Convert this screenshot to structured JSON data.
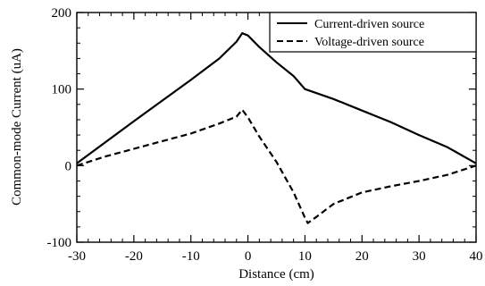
{
  "chart_data": {
    "type": "line",
    "xlabel": "Distance (cm)",
    "ylabel": "Common-mode Current (uA)",
    "xlim": [
      -30,
      40
    ],
    "ylim": [
      -100,
      200
    ],
    "x_ticks": [
      -30,
      -20,
      -10,
      0,
      10,
      20,
      30,
      40
    ],
    "y_ticks": [
      -100,
      0,
      100,
      200
    ],
    "x_tick_labels": [
      "-30",
      "-20",
      "-10",
      "0",
      "10",
      "20",
      "30",
      "40"
    ],
    "y_tick_labels": [
      "-100",
      "0",
      "100",
      "200"
    ],
    "grid": false,
    "legend_position": "top-right",
    "series": [
      {
        "name": "Current-driven source",
        "style": "solid",
        "x": [
          -30,
          -20,
          -10,
          -5,
          -2,
          -1,
          0,
          2,
          5,
          8,
          10,
          15,
          20,
          25,
          30,
          35,
          40
        ],
        "y": [
          3,
          58,
          112,
          140,
          162,
          173,
          170,
          155,
          135,
          117,
          100,
          87,
          72,
          57,
          40,
          24,
          3
        ]
      },
      {
        "name": "Voltage-driven source",
        "style": "dashed",
        "x": [
          -30,
          -25,
          -20,
          -15,
          -10,
          -5,
          -2,
          -1,
          0,
          2,
          5,
          8,
          10,
          10.5,
          12,
          15,
          20,
          25,
          30,
          35,
          40
        ],
        "y": [
          0,
          12,
          22,
          32,
          42,
          55,
          64,
          73,
          63,
          38,
          5,
          -35,
          -68,
          -75,
          -67,
          -50,
          -35,
          -27,
          -20,
          -12,
          0
        ]
      }
    ]
  }
}
